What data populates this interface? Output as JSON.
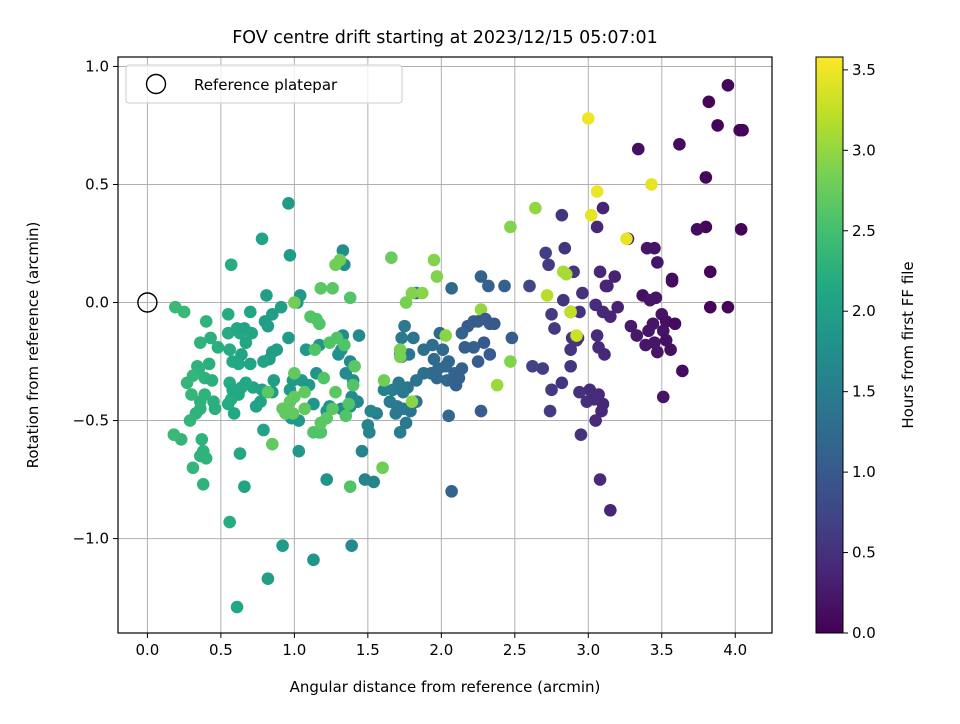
{
  "chart_data": {
    "type": "scatter",
    "title": "FOV centre drift starting at 2023/12/15 05:07:01",
    "xlabel": "Angular distance from reference (arcmin)",
    "ylabel": "Rotation from reference (arcmin)",
    "xlim": [
      -0.2,
      4.25
    ],
    "ylim": [
      -1.4,
      1.04
    ],
    "xticks": [
      0.0,
      0.5,
      1.0,
      1.5,
      2.0,
      2.5,
      3.0,
      3.5,
      4.0
    ],
    "xtick_labels": [
      "0.0",
      "0.5",
      "1.0",
      "1.5",
      "2.0",
      "2.5",
      "3.0",
      "3.5",
      "4.0"
    ],
    "yticks": [
      -1.0,
      -0.5,
      0.0,
      0.5,
      1.0
    ],
    "ytick_labels": [
      "−1.0",
      "−0.5",
      "0.0",
      "0.5",
      "1.0"
    ],
    "grid": true,
    "legend": {
      "placement": "top-left",
      "entries": [
        "Reference platepar"
      ]
    },
    "reference_point": {
      "x": 0.0,
      "y": 0.0
    },
    "colorbar": {
      "label": "Hours from first FF file",
      "colormap": "viridis",
      "range": [
        0.0,
        3.58
      ],
      "ticks": [
        0.0,
        0.5,
        1.0,
        1.5,
        2.0,
        2.5,
        3.0,
        3.5
      ],
      "tick_labels": [
        "0.0",
        "0.5",
        "1.0",
        "1.5",
        "2.0",
        "2.5",
        "3.0",
        "3.5"
      ]
    },
    "points": [
      [
        3.95,
        0.92,
        0.05
      ],
      [
        3.82,
        0.85,
        0.05
      ],
      [
        3.88,
        0.75,
        0.05
      ],
      [
        4.03,
        0.73,
        0.05
      ],
      [
        4.05,
        0.73,
        0.05
      ],
      [
        3.62,
        0.67,
        0.12
      ],
      [
        3.34,
        0.65,
        0.15
      ],
      [
        3.8,
        0.53,
        0.05
      ],
      [
        4.04,
        0.31,
        0.05
      ],
      [
        3.8,
        0.32,
        0.05
      ],
      [
        3.74,
        0.31,
        0.12
      ],
      [
        3.1,
        0.4,
        0.35
      ],
      [
        3.27,
        0.27,
        0.25
      ],
      [
        3.4,
        0.23,
        0.2
      ],
      [
        3.45,
        0.23,
        0.18
      ],
      [
        3.47,
        0.17,
        0.22
      ],
      [
        3.83,
        0.13,
        0.05
      ],
      [
        3.57,
        0.09,
        0.12
      ],
      [
        3.57,
        0.1,
        0.1
      ],
      [
        3.37,
        0.03,
        0.15
      ],
      [
        3.83,
        -0.02,
        0.05
      ],
      [
        3.95,
        -0.02,
        0.05
      ],
      [
        3.46,
        0.02,
        0.18
      ],
      [
        3.42,
        0.01,
        0.2
      ],
      [
        3.5,
        -0.05,
        0.18
      ],
      [
        3.53,
        -0.08,
        0.15
      ],
      [
        3.59,
        -0.09,
        0.1
      ],
      [
        3.44,
        -0.09,
        0.2
      ],
      [
        3.41,
        -0.12,
        0.2
      ],
      [
        3.33,
        -0.14,
        0.25
      ],
      [
        3.29,
        -0.1,
        0.25
      ],
      [
        3.45,
        -0.17,
        0.2
      ],
      [
        3.51,
        -0.12,
        0.18
      ],
      [
        3.53,
        -0.16,
        0.15
      ],
      [
        3.47,
        -0.21,
        0.2
      ],
      [
        3.39,
        -0.18,
        0.22
      ],
      [
        3.56,
        -0.2,
        0.15
      ],
      [
        3.64,
        -0.29,
        0.12
      ],
      [
        3.51,
        -0.4,
        0.18
      ],
      [
        3.06,
        0.32,
        0.4
      ],
      [
        3.08,
        0.13,
        0.4
      ],
      [
        2.73,
        0.16,
        0.6
      ],
      [
        2.71,
        0.21,
        0.65
      ],
      [
        2.84,
        0.23,
        0.55
      ],
      [
        2.9,
        0.13,
        0.55
      ],
      [
        3.12,
        0.07,
        0.38
      ],
      [
        3.13,
        0.07,
        0.38
      ],
      [
        3.18,
        0.11,
        0.35
      ],
      [
        2.96,
        0.04,
        0.5
      ],
      [
        2.83,
        0.01,
        0.55
      ],
      [
        2.88,
        -0.04,
        0.55
      ],
      [
        2.94,
        -0.04,
        0.5
      ],
      [
        3.05,
        -0.01,
        0.45
      ],
      [
        3.15,
        -0.06,
        0.38
      ],
      [
        3.2,
        -0.02,
        0.35
      ],
      [
        3.1,
        -0.04,
        0.4
      ],
      [
        2.75,
        -0.05,
        0.6
      ],
      [
        2.77,
        -0.11,
        0.6
      ],
      [
        2.89,
        -0.15,
        0.55
      ],
      [
        2.93,
        -0.15,
        0.55
      ],
      [
        2.88,
        -0.2,
        0.55
      ],
      [
        2.92,
        -0.16,
        0.55
      ],
      [
        3.06,
        -0.14,
        0.45
      ],
      [
        3.07,
        -0.19,
        0.45
      ],
      [
        3.11,
        -0.22,
        0.4
      ],
      [
        2.88,
        -0.27,
        0.55
      ],
      [
        2.69,
        -0.28,
        0.65
      ],
      [
        2.75,
        -0.37,
        0.6
      ],
      [
        2.82,
        -0.34,
        0.55
      ],
      [
        2.94,
        -0.38,
        0.5
      ],
      [
        3.01,
        -0.37,
        0.45
      ],
      [
        2.99,
        -0.42,
        0.48
      ],
      [
        3.07,
        -0.39,
        0.42
      ],
      [
        3.1,
        -0.43,
        0.4
      ],
      [
        3.04,
        -0.41,
        0.45
      ],
      [
        3.05,
        -0.5,
        0.42
      ],
      [
        3.09,
        -0.46,
        0.4
      ],
      [
        2.95,
        -0.56,
        0.5
      ],
      [
        2.74,
        -0.46,
        0.62
      ],
      [
        3.08,
        -0.75,
        0.42
      ],
      [
        3.15,
        -0.88,
        0.38
      ],
      [
        2.62,
        -0.27,
        0.7
      ],
      [
        2.6,
        0.07,
        0.75
      ],
      [
        2.82,
        0.37,
        0.55
      ],
      [
        3.02,
        0.37,
        3.45
      ],
      [
        3.0,
        0.78,
        3.5
      ],
      [
        3.06,
        0.47,
        3.48
      ],
      [
        3.43,
        0.5,
        3.45
      ],
      [
        3.26,
        0.27,
        3.45
      ],
      [
        2.72,
        0.03,
        3.2
      ],
      [
        2.83,
        0.13,
        3.1
      ],
      [
        2.85,
        0.12,
        3.1
      ],
      [
        2.88,
        -0.04,
        3.25
      ],
      [
        2.92,
        -0.14,
        3.3
      ],
      [
        2.64,
        0.4,
        3.0
      ],
      [
        2.47,
        0.32,
        2.9
      ],
      [
        2.27,
        -0.03,
        3.0
      ],
      [
        2.47,
        -0.25,
        2.9
      ],
      [
        2.38,
        -0.35,
        3.05
      ],
      [
        2.32,
        0.07,
        1.1
      ],
      [
        2.43,
        0.07,
        1.1
      ],
      [
        2.27,
        0.11,
        1.1
      ],
      [
        2.22,
        -0.08,
        1.1
      ],
      [
        2.25,
        -0.08,
        1.0
      ],
      [
        2.3,
        -0.07,
        1.0
      ],
      [
        2.33,
        -0.09,
        1.0
      ],
      [
        2.36,
        -0.09,
        1.0
      ],
      [
        2.18,
        -0.1,
        1.05
      ],
      [
        2.14,
        -0.13,
        1.1
      ],
      [
        2.22,
        -0.19,
        1.1
      ],
      [
        2.16,
        -0.19,
        1.05
      ],
      [
        2.29,
        -0.17,
        1.0
      ],
      [
        2.48,
        -0.15,
        1.05
      ],
      [
        2.33,
        -0.22,
        1.05
      ],
      [
        2.25,
        -0.25,
        1.05
      ],
      [
        2.14,
        -0.28,
        1.1
      ],
      [
        2.05,
        -0.25,
        1.2
      ],
      [
        2.03,
        -0.27,
        1.2
      ],
      [
        1.98,
        -0.28,
        1.25
      ],
      [
        2.04,
        -0.33,
        1.2
      ],
      [
        2.09,
        -0.3,
        1.15
      ],
      [
        2.1,
        -0.35,
        1.1
      ],
      [
        2.12,
        -0.32,
        1.1
      ],
      [
        1.97,
        -0.32,
        1.2
      ],
      [
        1.93,
        -0.3,
        1.25
      ],
      [
        1.88,
        -0.3,
        1.3
      ],
      [
        1.95,
        -0.24,
        1.25
      ],
      [
        1.94,
        -0.18,
        1.3
      ],
      [
        2.01,
        -0.2,
        1.2
      ],
      [
        1.99,
        -0.13,
        1.25
      ],
      [
        1.88,
        -0.2,
        1.3
      ],
      [
        1.81,
        -0.15,
        1.4
      ],
      [
        1.73,
        -0.15,
        1.45
      ],
      [
        1.78,
        -0.22,
        1.4
      ],
      [
        1.73,
        -0.23,
        1.45
      ],
      [
        2.07,
        0.06,
        1.2
      ],
      [
        1.83,
        0.04,
        1.4
      ],
      [
        1.75,
        -0.1,
        1.45
      ],
      [
        1.72,
        -0.22,
        1.45
      ],
      [
        1.77,
        -0.36,
        1.4
      ],
      [
        1.71,
        -0.34,
        1.45
      ],
      [
        1.74,
        -0.38,
        1.45
      ],
      [
        1.67,
        -0.37,
        1.5
      ],
      [
        1.65,
        -0.42,
        1.5
      ],
      [
        1.69,
        -0.47,
        1.45
      ],
      [
        1.7,
        -0.44,
        1.45
      ],
      [
        1.74,
        -0.45,
        1.45
      ],
      [
        1.83,
        -0.42,
        1.35
      ],
      [
        1.83,
        -0.33,
        1.35
      ],
      [
        1.79,
        -0.46,
        1.4
      ],
      [
        1.76,
        -0.51,
        1.45
      ],
      [
        1.72,
        -0.55,
        1.5
      ],
      [
        1.61,
        -0.37,
        1.55
      ],
      [
        1.56,
        -0.47,
        1.55
      ],
      [
        1.52,
        -0.46,
        1.6
      ],
      [
        1.5,
        -0.52,
        1.6
      ],
      [
        1.51,
        -0.55,
        1.6
      ],
      [
        1.46,
        -0.63,
        1.6
      ],
      [
        1.43,
        -0.42,
        1.65
      ],
      [
        1.4,
        -0.33,
        1.7
      ],
      [
        1.35,
        -0.3,
        1.7
      ],
      [
        1.32,
        -0.2,
        1.75
      ],
      [
        1.44,
        -0.14,
        1.7
      ],
      [
        1.38,
        -0.25,
        1.7
      ],
      [
        1.33,
        -0.14,
        1.75
      ],
      [
        1.39,
        -0.4,
        1.7
      ],
      [
        1.38,
        -0.44,
        1.7
      ],
      [
        1.32,
        -0.45,
        1.75
      ],
      [
        1.48,
        -0.75,
        1.6
      ],
      [
        1.54,
        -0.76,
        1.6
      ],
      [
        1.39,
        -1.03,
        1.7
      ],
      [
        1.34,
        0.16,
        1.75
      ],
      [
        1.33,
        0.22,
        1.75
      ],
      [
        2.05,
        -0.48,
        1.2
      ],
      [
        2.07,
        -0.8,
        1.15
      ],
      [
        2.27,
        -0.46,
        1.05
      ],
      [
        1.3,
        -0.22,
        1.8
      ],
      [
        1.24,
        -0.44,
        1.8
      ],
      [
        1.22,
        -0.46,
        1.85
      ],
      [
        1.13,
        -0.43,
        1.85
      ],
      [
        1.17,
        -0.55,
        1.8
      ],
      [
        1.18,
        -0.55,
        1.8
      ],
      [
        1.22,
        -0.75,
        1.8
      ],
      [
        1.03,
        -0.5,
        1.9
      ],
      [
        1.03,
        -0.63,
        1.9
      ],
      [
        0.98,
        -0.49,
        1.9
      ],
      [
        0.97,
        -0.37,
        1.95
      ],
      [
        0.99,
        -0.33,
        1.95
      ],
      [
        1.05,
        -0.33,
        1.9
      ],
      [
        1.1,
        -0.35,
        1.9
      ],
      [
        1.15,
        -0.3,
        1.85
      ],
      [
        1.08,
        -0.2,
        1.9
      ],
      [
        1.17,
        -0.18,
        1.85
      ],
      [
        1.04,
        0.03,
        1.9
      ],
      [
        1.02,
        0.0,
        1.9
      ],
      [
        0.96,
        -0.15,
        1.95
      ],
      [
        0.91,
        -0.02,
        2.0
      ],
      [
        0.85,
        -0.05,
        2.0
      ],
      [
        0.82,
        -0.1,
        2.0
      ],
      [
        0.8,
        -0.08,
        2.0
      ],
      [
        0.81,
        0.03,
        2.0
      ],
      [
        0.85,
        -0.21,
        2.0
      ],
      [
        0.88,
        -0.2,
        2.0
      ],
      [
        0.83,
        -0.24,
        2.0
      ],
      [
        0.86,
        -0.33,
        2.0
      ],
      [
        0.85,
        -0.38,
        2.0
      ],
      [
        0.79,
        -0.25,
        2.05
      ],
      [
        0.78,
        -0.37,
        2.05
      ],
      [
        0.77,
        -0.42,
        2.05
      ],
      [
        0.74,
        -0.44,
        2.05
      ],
      [
        0.79,
        -0.54,
        2.05
      ],
      [
        0.66,
        -0.78,
        2.1
      ],
      [
        0.92,
        -1.03,
        1.95
      ],
      [
        0.82,
        -1.17,
        2.0
      ],
      [
        1.13,
        -1.09,
        1.85
      ],
      [
        0.96,
        0.42,
        1.95
      ],
      [
        0.97,
        0.2,
        1.95
      ],
      [
        0.78,
        0.27,
        2.05
      ],
      [
        0.7,
        -0.04,
        2.1
      ],
      [
        0.71,
        -0.13,
        2.1
      ],
      [
        0.7,
        -0.26,
        2.1
      ],
      [
        0.72,
        -0.36,
        2.1
      ],
      [
        0.64,
        -0.36,
        2.15
      ],
      [
        0.67,
        -0.34,
        2.15
      ],
      [
        0.62,
        -0.39,
        2.15
      ],
      [
        0.55,
        -0.43,
        2.2
      ],
      [
        0.56,
        -0.34,
        2.2
      ],
      [
        0.57,
        -0.41,
        2.2
      ],
      [
        0.58,
        -0.37,
        2.15
      ],
      [
        0.59,
        -0.47,
        2.15
      ],
      [
        0.63,
        -0.64,
        2.15
      ],
      [
        0.56,
        -0.93,
        2.2
      ],
      [
        0.61,
        -1.29,
        2.15
      ],
      [
        0.57,
        0.16,
        2.2
      ],
      [
        0.55,
        -0.05,
        2.2
      ],
      [
        0.55,
        -0.13,
        2.2
      ],
      [
        0.61,
        -0.11,
        2.15
      ],
      [
        0.56,
        -0.2,
        2.2
      ],
      [
        0.63,
        -0.13,
        2.15
      ],
      [
        0.66,
        -0.11,
        2.1
      ],
      [
        0.67,
        -0.17,
        2.1
      ],
      [
        0.64,
        -0.22,
        2.1
      ],
      [
        0.58,
        -0.25,
        2.15
      ],
      [
        0.62,
        -0.26,
        2.15
      ],
      [
        0.48,
        -0.19,
        2.25
      ],
      [
        0.43,
        -0.15,
        2.25
      ],
      [
        0.4,
        -0.08,
        2.3
      ],
      [
        0.36,
        -0.17,
        2.3
      ],
      [
        0.42,
        -0.26,
        2.25
      ],
      [
        0.39,
        -0.32,
        2.3
      ],
      [
        0.44,
        -0.33,
        2.25
      ],
      [
        0.45,
        -0.42,
        2.25
      ],
      [
        0.46,
        -0.45,
        2.25
      ],
      [
        0.39,
        -0.39,
        2.3
      ],
      [
        0.36,
        -0.42,
        2.3
      ],
      [
        0.36,
        -0.45,
        2.3
      ],
      [
        0.35,
        -0.28,
        2.3
      ],
      [
        0.34,
        -0.27,
        2.3
      ],
      [
        0.31,
        -0.31,
        2.35
      ],
      [
        0.33,
        -0.47,
        2.3
      ],
      [
        0.29,
        -0.5,
        2.35
      ],
      [
        0.27,
        -0.34,
        2.35
      ],
      [
        0.3,
        -0.39,
        2.35
      ],
      [
        0.38,
        -0.63,
        2.3
      ],
      [
        0.37,
        -0.58,
        2.3
      ],
      [
        0.36,
        -0.65,
        2.3
      ],
      [
        0.4,
        -0.66,
        2.3
      ],
      [
        0.31,
        -0.7,
        2.35
      ],
      [
        0.38,
        -0.77,
        2.3
      ],
      [
        0.23,
        -0.58,
        2.35
      ],
      [
        0.18,
        -0.56,
        2.4
      ],
      [
        0.19,
        -0.02,
        2.4
      ],
      [
        0.25,
        -0.04,
        2.4
      ],
      [
        1.18,
        -0.55,
        2.6
      ],
      [
        1.13,
        -0.55,
        2.6
      ],
      [
        1.2,
        -0.32,
        2.6
      ],
      [
        1.14,
        -0.2,
        2.6
      ],
      [
        1.11,
        -0.06,
        2.6
      ],
      [
        1.15,
        -0.07,
        2.6
      ],
      [
        1.17,
        -0.09,
        2.6
      ],
      [
        1.18,
        0.06,
        2.65
      ],
      [
        1.26,
        0.06,
        2.65
      ],
      [
        1.24,
        -0.17,
        2.6
      ],
      [
        1.29,
        -0.15,
        2.6
      ],
      [
        1.34,
        -0.18,
        2.6
      ],
      [
        1.37,
        -0.43,
        2.6
      ],
      [
        1.35,
        -0.48,
        2.6
      ],
      [
        1.28,
        -0.38,
        2.65
      ],
      [
        1.41,
        -0.27,
        2.65
      ],
      [
        1.4,
        -0.35,
        2.6
      ],
      [
        1.38,
        0.02,
        2.6
      ],
      [
        1.38,
        -0.78,
        2.6
      ],
      [
        1.26,
        -0.45,
        2.65
      ],
      [
        1.22,
        -0.49,
        2.65
      ],
      [
        1.18,
        -0.51,
        2.65
      ],
      [
        1.07,
        -0.38,
        2.7
      ],
      [
        1.07,
        -0.45,
        2.7
      ],
      [
        1.0,
        -0.4,
        2.7
      ],
      [
        0.99,
        -0.47,
        2.7
      ],
      [
        0.94,
        -0.47,
        2.7
      ],
      [
        0.92,
        -0.45,
        2.7
      ],
      [
        0.97,
        -0.42,
        2.7
      ],
      [
        1.0,
        -0.3,
        2.7
      ],
      [
        0.85,
        -0.6,
        2.7
      ],
      [
        0.82,
        -0.38,
        2.65
      ],
      [
        1.0,
        0.0,
        2.8
      ],
      [
        1.28,
        0.16,
        2.8
      ],
      [
        1.31,
        0.18,
        2.8
      ],
      [
        1.61,
        -0.33,
        2.8
      ],
      [
        1.6,
        -0.7,
        2.8
      ],
      [
        1.66,
        0.19,
        2.75
      ],
      [
        1.72,
        -0.2,
        2.85
      ],
      [
        1.72,
        -0.23,
        2.85
      ],
      [
        1.76,
        0.0,
        2.85
      ],
      [
        1.8,
        0.04,
        2.9
      ],
      [
        1.87,
        0.04,
        2.95
      ],
      [
        1.95,
        0.18,
        2.9
      ],
      [
        1.97,
        0.11,
        2.9
      ],
      [
        2.03,
        -0.14,
        2.95
      ],
      [
        1.8,
        -0.42,
        2.95
      ]
    ]
  }
}
